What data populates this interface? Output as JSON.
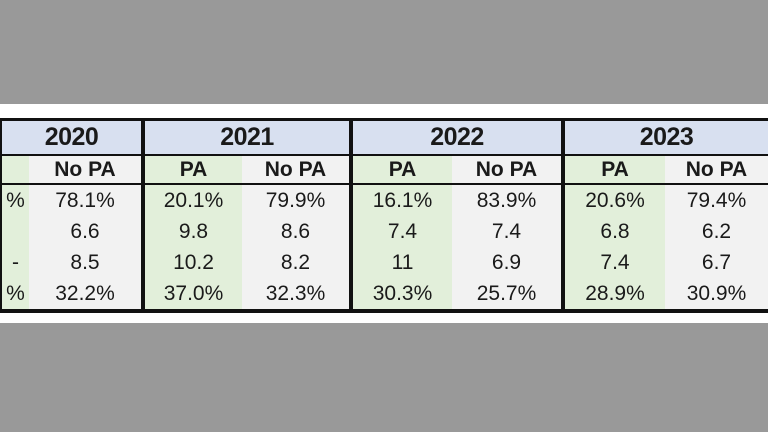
{
  "colors": {
    "page_bg": "#999999",
    "band_bg": "#ffffff",
    "year_header_bg": "#d8e0f0",
    "pa_bg": "#e2efda",
    "no_pa_bg": "#f2f2f2",
    "border": "#111111",
    "text": "#1a1a1a"
  },
  "table": {
    "note_cropped": "table cropped at left and right image edges",
    "groups": [
      {
        "year": "2020",
        "pa": {
          "header": "",
          "values": [
            "%",
            "",
            "-",
            "%"
          ]
        },
        "no_pa": {
          "header": "No PA",
          "values": [
            "78.1%",
            "6.6",
            "8.5",
            "32.2%"
          ]
        }
      },
      {
        "year": "2021",
        "pa": {
          "header": "PA",
          "values": [
            "20.1%",
            "9.8",
            "10.2",
            "37.0%"
          ]
        },
        "no_pa": {
          "header": "No PA",
          "values": [
            "79.9%",
            "8.6",
            "8.2",
            "32.3%"
          ]
        }
      },
      {
        "year": "2022",
        "pa": {
          "header": "PA",
          "values": [
            "16.1%",
            "7.4",
            "11",
            "30.3%"
          ]
        },
        "no_pa": {
          "header": "No PA",
          "values": [
            "83.9%",
            "7.4",
            "6.9",
            "25.7%"
          ]
        }
      },
      {
        "year": "2023",
        "pa": {
          "header": "PA",
          "values": [
            "20.6%",
            "6.8",
            "7.4",
            "28.9%"
          ]
        },
        "no_pa": {
          "header": "No PA",
          "values": [
            "79.4%",
            "6.2",
            "6.7",
            "30.9%"
          ]
        }
      }
    ]
  }
}
